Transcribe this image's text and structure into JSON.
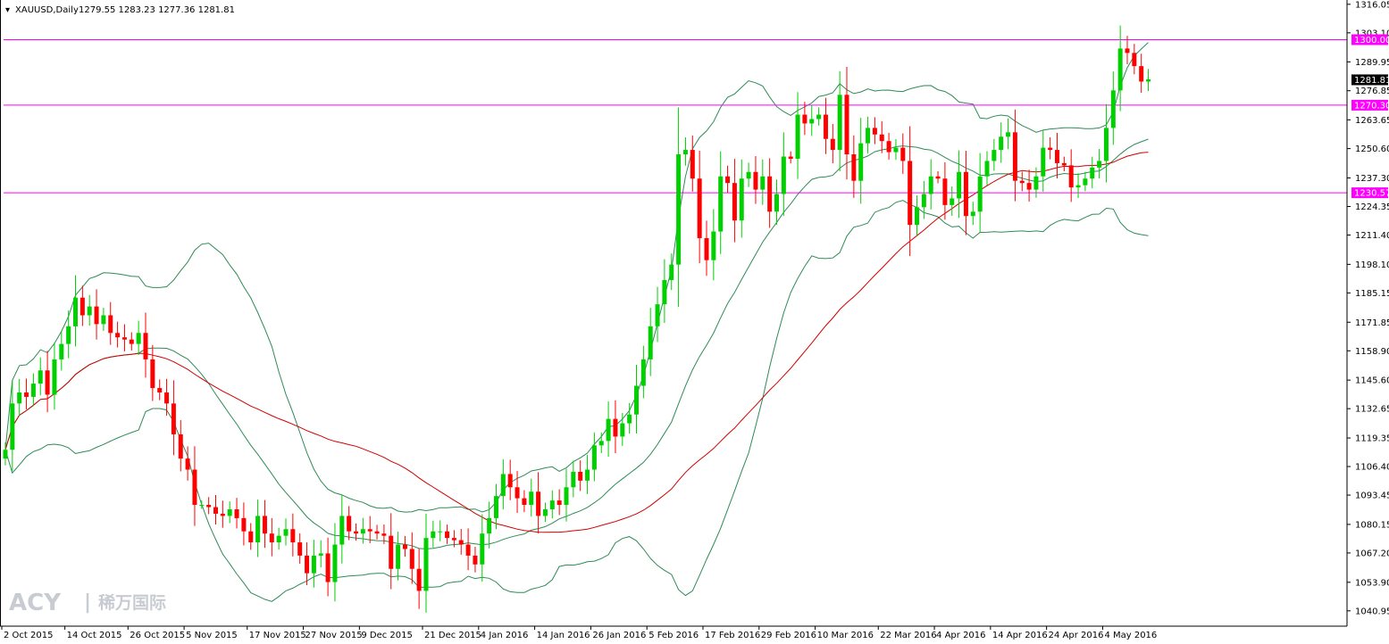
{
  "header": {
    "symbol_timeframe": "XAUUSD,Daily",
    "ohlc": "1279.55 1283.23 1277.36 1281.81"
  },
  "watermark": {
    "logo_text": "ACY",
    "separator": "|",
    "chinese_text": "稀万国际"
  },
  "colors": {
    "background": "#ffffff",
    "bull_candle": "#00d000",
    "bear_candle": "#ff0000",
    "bollinger": "#2e8b57",
    "moving_average": "#d00000",
    "horizontal_line": "#ff00ff",
    "current_price_bg": "#000000"
  },
  "chart_data": {
    "type": "candlestick",
    "symbol": "XAUUSD",
    "timeframe": "Daily",
    "y_range": [
      1034.0,
      1318.0
    ],
    "y_ticks": [
      1316.05,
      1303.1,
      1289.95,
      1276.85,
      1263.65,
      1250.6,
      1237.3,
      1224.35,
      1211.4,
      1198.1,
      1185.15,
      1171.85,
      1158.9,
      1145.6,
      1132.65,
      1119.35,
      1106.4,
      1093.45,
      1080.15,
      1067.2,
      1053.9,
      1040.95
    ],
    "x_labels": [
      {
        "i": 0,
        "text": "2 Oct 2015"
      },
      {
        "i": 9,
        "text": "14 Oct 2015"
      },
      {
        "i": 18,
        "text": "26 Oct 2015"
      },
      {
        "i": 26,
        "text": "5 Nov 2015"
      },
      {
        "i": 35,
        "text": "17 Nov 2015"
      },
      {
        "i": 43,
        "text": "27 Nov 2015"
      },
      {
        "i": 51,
        "text": "9 Dec 2015"
      },
      {
        "i": 60,
        "text": "21 Dec 2015"
      },
      {
        "i": 68,
        "text": "4 Jan 2016"
      },
      {
        "i": 76,
        "text": "14 Jan 2016"
      },
      {
        "i": 84,
        "text": "26 Jan 2016"
      },
      {
        "i": 92,
        "text": "5 Feb 2016"
      },
      {
        "i": 100,
        "text": "17 Feb 2016"
      },
      {
        "i": 108,
        "text": "29 Feb 2016"
      },
      {
        "i": 116,
        "text": "10 Mar 2016"
      },
      {
        "i": 125,
        "text": "22 Mar 2016"
      },
      {
        "i": 133,
        "text": "4 Apr 2016"
      },
      {
        "i": 141,
        "text": "14 Apr 2016"
      },
      {
        "i": 149,
        "text": "24 Apr 2016"
      },
      {
        "i": 157,
        "text": "4 May 2016"
      }
    ],
    "horizontal_lines": [
      {
        "value": 1300.0,
        "label": "1300.00"
      },
      {
        "value": 1270.3,
        "label": "1270.30"
      },
      {
        "value": 1230.57,
        "label": "1230.57"
      }
    ],
    "current_price": {
      "value": 1281.81,
      "label": "1281.81"
    },
    "closes": [
      1114,
      1135,
      1140,
      1138,
      1144,
      1150,
      1139,
      1155,
      1162,
      1170,
      1183,
      1175,
      1179,
      1171,
      1175,
      1167,
      1165,
      1164,
      1162,
      1167,
      1155,
      1142,
      1140,
      1135,
      1121,
      1110,
      1105,
      1089,
      1089,
      1088,
      1085,
      1084,
      1087,
      1083,
      1077,
      1072,
      1084,
      1076,
      1072,
      1075,
      1078,
      1072,
      1066,
      1058,
      1066,
      1067,
      1054,
      1071,
      1084,
      1077,
      1076,
      1078,
      1077,
      1076,
      1075,
      1060,
      1071,
      1069,
      1060,
      1050,
      1074,
      1077,
      1077,
      1074,
      1073,
      1071,
      1066,
      1062,
      1076,
      1083,
      1093,
      1103,
      1097,
      1092,
      1089,
      1095,
      1084,
      1087,
      1091,
      1089,
      1097,
      1104,
      1100,
      1105,
      1116,
      1118,
      1128,
      1120,
      1126,
      1130,
      1143,
      1155,
      1170,
      1180,
      1191,
      1198,
      1248,
      1250,
      1237,
      1210,
      1200,
      1213,
      1238,
      1235,
      1218,
      1237,
      1240,
      1232,
      1238,
      1222,
      1230,
      1247,
      1246,
      1266,
      1262,
      1264,
      1266,
      1255,
      1250,
      1275,
      1248,
      1236,
      1253,
      1260,
      1257,
      1254,
      1249,
      1251,
      1245,
      1216,
      1224,
      1230,
      1238,
      1237,
      1225,
      1228,
      1240,
      1220,
      1222,
      1238,
      1245,
      1250,
      1256,
      1258,
      1236,
      1235,
      1232,
      1238,
      1251,
      1250,
      1244,
      1243,
      1233,
      1234,
      1237,
      1242,
      1245,
      1260,
      1277,
      1296,
      1294,
      1288,
      1281,
      1282
    ],
    "series": [
      {
        "name": "Bollinger Bands (upper / middle / lower)"
      },
      {
        "name": "Moving Average"
      }
    ],
    "grid": false,
    "legend": "none"
  }
}
